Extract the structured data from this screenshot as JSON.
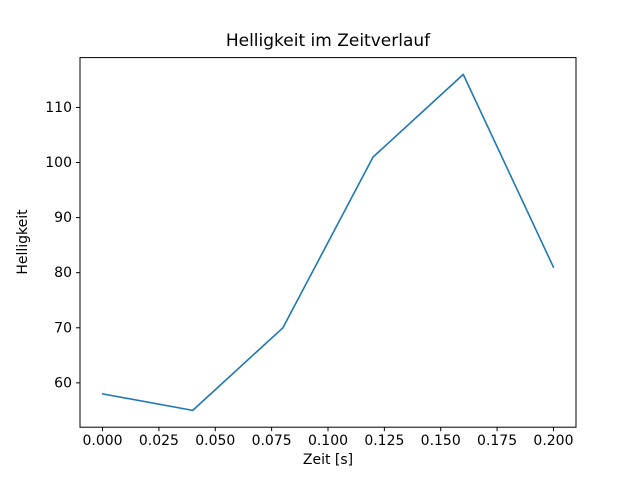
{
  "figure": {
    "background": "#ffffff",
    "axes_edge_color": "#000000",
    "line_color": "#1f77b4"
  },
  "chart_data": {
    "type": "line",
    "title": "Helligkeit im Zeitverlauf",
    "xlabel": "Zeit [s]",
    "ylabel": "Helligkeit",
    "x": [
      0.0,
      0.04,
      0.08,
      0.12,
      0.16,
      0.2
    ],
    "y": [
      58,
      55,
      70,
      101,
      116,
      81
    ],
    "xlim": [
      -0.01,
      0.21
    ],
    "ylim": [
      51.95,
      119.05
    ],
    "xticks": [
      0.0,
      0.025,
      0.05,
      0.075,
      0.1,
      0.125,
      0.15,
      0.175,
      0.2
    ],
    "xtick_labels": [
      "0.000",
      "0.025",
      "0.050",
      "0.075",
      "0.100",
      "0.125",
      "0.150",
      "0.175",
      "0.200"
    ],
    "yticks": [
      60,
      70,
      80,
      90,
      100,
      110
    ],
    "ytick_labels": [
      "60",
      "70",
      "80",
      "90",
      "100",
      "110"
    ],
    "grid": false,
    "legend": null
  }
}
